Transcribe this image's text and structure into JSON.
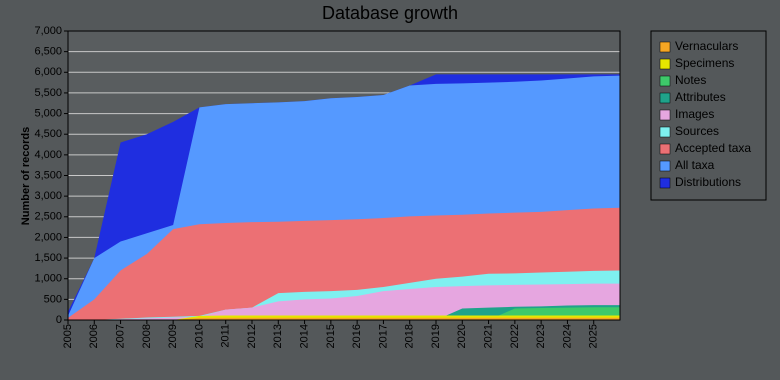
{
  "chart_data": {
    "type": "area",
    "title": "Database growth",
    "y_label": "Number of records",
    "categories": [
      "2005",
      "2006",
      "2007",
      "2008",
      "2009",
      "2010",
      "2011",
      "2012",
      "2013",
      "2014",
      "2015",
      "2016",
      "2017",
      "2018",
      "2019",
      "2020",
      "2021",
      "2022",
      "2023",
      "2024",
      "2025",
      null
    ],
    "series": [
      {
        "name": "Vernaculars",
        "color": "#f5a623",
        "values": [
          0,
          0,
          0,
          0,
          0,
          50,
          55,
          55,
          55,
          55,
          55,
          55,
          55,
          55,
          55,
          55,
          55,
          55,
          55,
          55,
          55,
          55
        ]
      },
      {
        "name": "Specimens",
        "color": "#e6e600",
        "values": [
          0,
          0,
          0,
          0,
          0,
          100,
          110,
          110,
          110,
          110,
          110,
          110,
          110,
          110,
          110,
          110,
          110,
          110,
          110,
          110,
          110,
          110
        ]
      },
      {
        "name": "Notes",
        "color": "#3ec96a",
        "values": [
          0,
          0,
          0,
          0,
          0,
          0,
          0,
          0,
          0,
          0,
          0,
          0,
          0,
          0,
          0,
          0,
          0,
          280,
          290,
          300,
          310,
          310
        ]
      },
      {
        "name": "Attributes",
        "color": "#1fa38a",
        "values": [
          0,
          0,
          0,
          0,
          0,
          0,
          0,
          0,
          0,
          0,
          0,
          0,
          0,
          0,
          0,
          280,
          300,
          320,
          330,
          350,
          360,
          360
        ]
      },
      {
        "name": "Images",
        "color": "#e6a6e0",
        "values": [
          0,
          0,
          20,
          40,
          60,
          80,
          250,
          300,
          450,
          500,
          520,
          580,
          700,
          750,
          800,
          820,
          840,
          850,
          860,
          870,
          880,
          880
        ]
      },
      {
        "name": "Sources",
        "color": "#7ef0f0",
        "values": [
          0,
          0,
          30,
          60,
          80,
          100,
          250,
          300,
          650,
          680,
          700,
          730,
          800,
          900,
          1000,
          1050,
          1120,
          1130,
          1150,
          1170,
          1190,
          1200
        ]
      },
      {
        "name": "Accepted taxa",
        "color": "#ec7074",
        "values": [
          50,
          500,
          1200,
          1600,
          2200,
          2320,
          2350,
          2370,
          2380,
          2400,
          2420,
          2440,
          2470,
          2510,
          2530,
          2550,
          2580,
          2600,
          2620,
          2660,
          2700,
          2720
        ]
      },
      {
        "name": "All taxa",
        "color": "#5599ff",
        "values": [
          100,
          1500,
          1900,
          2100,
          2300,
          5150,
          5230,
          5250,
          5270,
          5300,
          5370,
          5400,
          5450,
          5680,
          5720,
          5730,
          5750,
          5770,
          5800,
          5850,
          5900,
          5920
        ]
      },
      {
        "name": "Distributions",
        "color": "#1f2ee0",
        "values": [
          200,
          1500,
          4300,
          4500,
          4800,
          5150,
          5230,
          5250,
          5270,
          5300,
          5370,
          5400,
          5450,
          5680,
          5950,
          5950,
          5950,
          5950,
          5950,
          5950,
          5950,
          5950
        ]
      }
    ],
    "ylim": [
      0,
      7000
    ],
    "yticks": [
      0,
      500,
      {
        "value": 1000,
        "label": "1,000"
      },
      {
        "value": 1500,
        "label": "1,500"
      },
      {
        "value": 2000,
        "label": "2,000"
      },
      {
        "value": 2500,
        "label": "2,500"
      },
      {
        "value": 3000,
        "label": "3,000"
      },
      {
        "value": 3500,
        "label": "3,500"
      },
      {
        "value": 4000,
        "label": "4,000"
      },
      {
        "value": 4500,
        "label": "4,500"
      },
      {
        "value": 5000,
        "label": "5,000"
      },
      {
        "value": 5500,
        "label": "5,500"
      },
      {
        "value": 6000,
        "label": "6,000"
      },
      {
        "value": 6500,
        "label": "6,500"
      },
      {
        "value": 7000,
        "label": "7,000"
      }
    ],
    "grid": true
  }
}
